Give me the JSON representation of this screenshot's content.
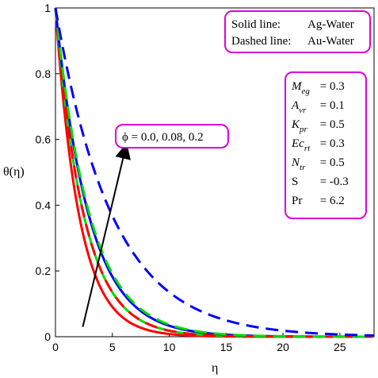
{
  "chart_data": {
    "type": "line",
    "title": "",
    "xlabel": "η",
    "ylabel": "θ(η)",
    "xlim": [
      0,
      28
    ],
    "ylim": [
      0,
      1
    ],
    "x_ticks": [
      "0",
      "5",
      "10",
      "15",
      "20",
      "25"
    ],
    "y_ticks": [
      "0",
      "0.2",
      "0.4",
      "0.6",
      "0.8",
      "1"
    ],
    "grid": false,
    "legend_box": {
      "line1_key": "Solid line:",
      "line1_val": "Ag-Water",
      "line2_key": "Dashed line:",
      "line2_val": "Au-Water"
    },
    "phi_label": "ϕ = 0.0, 0.08, 0.2",
    "params": [
      {
        "sym": "M",
        "sub": "eg",
        "val": "= 0.3"
      },
      {
        "sym": "A",
        "sub": "vr",
        "val": "= 0.1"
      },
      {
        "sym": "K",
        "sub": "pr",
        "val": "= 0.5"
      },
      {
        "sym": "Ec",
        "sub": "rt",
        "val": "= 0.3"
      },
      {
        "sym": "N",
        "sub": "tr",
        "val": "= 0.5"
      },
      {
        "sym": "S",
        "sub": "",
        "val": "= -0.3"
      },
      {
        "sym": "Pr",
        "sub": "",
        "val": "= 6.2"
      }
    ],
    "series": [
      {
        "color": "#ff0000",
        "dash": false,
        "decay": 0.48
      },
      {
        "color": "#00dd00",
        "dash": false,
        "decay": 0.4
      },
      {
        "color": "#0000ff",
        "dash": false,
        "decay": 0.34
      },
      {
        "color": "#ff0000",
        "dash": true,
        "decay": 0.4
      },
      {
        "color": "#00dd00",
        "dash": true,
        "decay": 0.33
      },
      {
        "color": "#0000ff",
        "dash": true,
        "decay": 0.2
      }
    ],
    "arrow": {
      "from": [
        2.4,
        0.03
      ],
      "to": [
        6.2,
        0.58
      ]
    },
    "colors": {
      "box_border": "#dd00dd",
      "axis": "#000000"
    }
  }
}
